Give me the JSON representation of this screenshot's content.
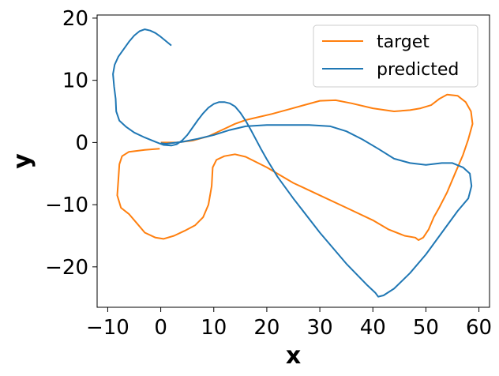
{
  "chart_data": {
    "type": "line",
    "title": "",
    "xlabel": "x",
    "ylabel": "y",
    "xlim": [
      -12,
      62
    ],
    "ylim": [
      -26.5,
      20.5
    ],
    "xticks": [
      -10,
      0,
      10,
      20,
      30,
      40,
      50,
      60
    ],
    "xtick_labels": [
      "−10",
      "0",
      "10",
      "20",
      "30",
      "40",
      "50",
      "60"
    ],
    "yticks": [
      -20,
      -10,
      0,
      10,
      20
    ],
    "ytick_labels": [
      "−20",
      "−10",
      "0",
      "10",
      "20"
    ],
    "grid": false,
    "legend_position": "upper right",
    "series": [
      {
        "name": "target",
        "color": "#ff7f0e",
        "points": [
          [
            -0.2,
            -1.0
          ],
          [
            -3.0,
            -1.2
          ],
          [
            -6.0,
            -1.5
          ],
          [
            -7.3,
            -2.2
          ],
          [
            -7.8,
            -3.5
          ],
          [
            -8.0,
            -6.0
          ],
          [
            -8.2,
            -8.5
          ],
          [
            -7.5,
            -10.5
          ],
          [
            -6.0,
            -11.5
          ],
          [
            -4.5,
            -13.0
          ],
          [
            -3.0,
            -14.5
          ],
          [
            -1.0,
            -15.3
          ],
          [
            0.5,
            -15.5
          ],
          [
            2.5,
            -15.0
          ],
          [
            4.5,
            -14.2
          ],
          [
            6.5,
            -13.3
          ],
          [
            8.0,
            -12.0
          ],
          [
            9.0,
            -10.0
          ],
          [
            9.6,
            -7.0
          ],
          [
            9.8,
            -4.0
          ],
          [
            10.5,
            -2.8
          ],
          [
            12.0,
            -2.2
          ],
          [
            14.0,
            -1.9
          ],
          [
            16.0,
            -2.3
          ],
          [
            20.0,
            -4.0
          ],
          [
            25.0,
            -6.5
          ],
          [
            30.0,
            -8.5
          ],
          [
            35.0,
            -10.5
          ],
          [
            40.0,
            -12.5
          ],
          [
            43.0,
            -14.0
          ],
          [
            46.0,
            -15.0
          ],
          [
            48.0,
            -15.3
          ],
          [
            48.6,
            -15.7
          ],
          [
            49.5,
            -15.3
          ],
          [
            50.5,
            -14.0
          ],
          [
            51.5,
            -12.0
          ],
          [
            52.5,
            -10.5
          ],
          [
            54.0,
            -8.0
          ],
          [
            55.5,
            -5.0
          ],
          [
            57.0,
            -2.0
          ],
          [
            58.0,
            0.5
          ],
          [
            58.8,
            3.0
          ],
          [
            58.5,
            5.0
          ],
          [
            57.5,
            6.5
          ],
          [
            56.0,
            7.5
          ],
          [
            54.0,
            7.7
          ],
          [
            52.5,
            7.0
          ],
          [
            51.0,
            6.0
          ],
          [
            49.0,
            5.5
          ],
          [
            47.0,
            5.2
          ],
          [
            44.0,
            5.0
          ],
          [
            40.0,
            5.5
          ],
          [
            36.0,
            6.3
          ],
          [
            33.0,
            6.8
          ],
          [
            30.0,
            6.7
          ],
          [
            27.0,
            6.0
          ],
          [
            24.0,
            5.3
          ],
          [
            21.0,
            4.6
          ],
          [
            18.0,
            4.0
          ],
          [
            16.0,
            3.6
          ],
          [
            14.0,
            3.0
          ],
          [
            12.0,
            2.2
          ],
          [
            9.0,
            1.0
          ],
          [
            6.0,
            0.3
          ],
          [
            3.0,
            0.0
          ],
          [
            0.0,
            0.0
          ]
        ]
      },
      {
        "name": "predicted",
        "color": "#1f77b4",
        "points": [
          [
            2.0,
            15.6
          ],
          [
            1.0,
            16.3
          ],
          [
            0.0,
            17.0
          ],
          [
            -1.0,
            17.6
          ],
          [
            -2.0,
            18.0
          ],
          [
            -3.0,
            18.2
          ],
          [
            -4.0,
            17.9
          ],
          [
            -5.0,
            17.2
          ],
          [
            -6.0,
            16.2
          ],
          [
            -7.0,
            15.0
          ],
          [
            -8.0,
            13.8
          ],
          [
            -8.7,
            12.5
          ],
          [
            -9.0,
            11.0
          ],
          [
            -8.8,
            9.0
          ],
          [
            -8.5,
            7.0
          ],
          [
            -8.4,
            5.0
          ],
          [
            -7.8,
            3.5
          ],
          [
            -6.5,
            2.5
          ],
          [
            -5.0,
            1.6
          ],
          [
            -3.0,
            0.8
          ],
          [
            -1.0,
            0.1
          ],
          [
            0.5,
            -0.4
          ],
          [
            2.0,
            -0.5
          ],
          [
            3.0,
            -0.3
          ],
          [
            4.0,
            0.3
          ],
          [
            5.0,
            1.2
          ],
          [
            6.0,
            2.4
          ],
          [
            7.0,
            3.6
          ],
          [
            8.0,
            4.7
          ],
          [
            9.0,
            5.6
          ],
          [
            10.0,
            6.2
          ],
          [
            11.0,
            6.5
          ],
          [
            12.0,
            6.5
          ],
          [
            13.0,
            6.3
          ],
          [
            14.0,
            5.8
          ],
          [
            15.0,
            4.8
          ],
          [
            16.0,
            3.5
          ],
          [
            17.0,
            2.0
          ],
          [
            18.0,
            0.4
          ],
          [
            19.0,
            -1.2
          ],
          [
            20.0,
            -2.7
          ],
          [
            22.0,
            -5.5
          ],
          [
            25.0,
            -9.0
          ],
          [
            30.0,
            -14.5
          ],
          [
            35.0,
            -19.5
          ],
          [
            39.0,
            -23.0
          ],
          [
            40.5,
            -24.2
          ],
          [
            41.0,
            -24.8
          ],
          [
            42.0,
            -24.6
          ],
          [
            44.0,
            -23.5
          ],
          [
            47.0,
            -21.0
          ],
          [
            50.0,
            -18.0
          ],
          [
            53.0,
            -14.5
          ],
          [
            56.0,
            -11.0
          ],
          [
            58.0,
            -9.0
          ],
          [
            58.6,
            -7.0
          ],
          [
            58.3,
            -5.0
          ],
          [
            57.0,
            -4.0
          ],
          [
            55.0,
            -3.3
          ],
          [
            53.0,
            -3.3
          ],
          [
            50.0,
            -3.6
          ],
          [
            47.0,
            -3.3
          ],
          [
            44.0,
            -2.6
          ],
          [
            41.0,
            -1.0
          ],
          [
            38.0,
            0.5
          ],
          [
            35.0,
            1.8
          ],
          [
            32.0,
            2.6
          ],
          [
            28.0,
            2.8
          ],
          [
            24.0,
            2.8
          ],
          [
            20.0,
            2.8
          ],
          [
            16.0,
            2.6
          ],
          [
            13.0,
            2.0
          ],
          [
            10.0,
            1.2
          ],
          [
            7.0,
            0.6
          ],
          [
            4.0,
            0.1
          ],
          [
            1.0,
            -0.2
          ],
          [
            0.0,
            -0.1
          ]
        ]
      }
    ]
  }
}
